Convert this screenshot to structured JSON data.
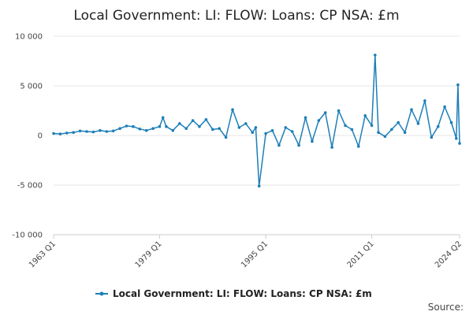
{
  "chart_data": {
    "type": "line",
    "title": "Local Government: LI: FLOW: Loans: CP NSA: £m",
    "xlabel": "",
    "ylabel": "",
    "ylim": [
      -10000,
      10000
    ],
    "y_ticks": [
      10000,
      5000,
      0,
      -5000,
      -10000
    ],
    "y_tick_labels": [
      "10 000",
      "5 000",
      "0",
      "-5 000",
      "-10 000"
    ],
    "x_tick_labels": [
      "1963 Q1",
      "1979 Q1",
      "1995 Q1",
      "2011 Q1",
      "2024 Q2"
    ],
    "grid": true,
    "legend_position": "bottom",
    "source_text": "Source:",
    "colors": {
      "series": "#1c7fb8"
    },
    "series": [
      {
        "name": "Local Government: LI: FLOW: Loans: CP NSA: £m",
        "x": [
          "1963 Q1",
          "1964 Q1",
          "1965 Q1",
          "1966 Q1",
          "1967 Q1",
          "1968 Q1",
          "1969 Q1",
          "1970 Q1",
          "1971 Q1",
          "1972 Q1",
          "1973 Q1",
          "1974 Q1",
          "1975 Q1",
          "1976 Q1",
          "1977 Q1",
          "1978 Q1",
          "1979 Q1",
          "1979 Q3",
          "1980 Q1",
          "1981 Q1",
          "1982 Q1",
          "1983 Q1",
          "1984 Q1",
          "1985 Q1",
          "1986 Q1",
          "1987 Q1",
          "1988 Q1",
          "1989 Q1",
          "1990 Q1",
          "1991 Q1",
          "1992 Q1",
          "1993 Q1",
          "1993 Q3",
          "1994 Q1",
          "1995 Q1",
          "1996 Q1",
          "1997 Q1",
          "1998 Q1",
          "1999 Q1",
          "2000 Q1",
          "2001 Q1",
          "2002 Q1",
          "2003 Q1",
          "2004 Q1",
          "2005 Q1",
          "2006 Q1",
          "2007 Q1",
          "2008 Q1",
          "2009 Q1",
          "2010 Q1",
          "2011 Q1",
          "2011 Q3",
          "2012 Q1",
          "2013 Q1",
          "2014 Q1",
          "2015 Q1",
          "2016 Q1",
          "2017 Q1",
          "2018 Q1",
          "2019 Q1",
          "2020 Q1",
          "2021 Q1",
          "2022 Q1",
          "2023 Q1",
          "2023 Q4",
          "2024 Q1",
          "2024 Q2"
        ],
        "values": [
          200,
          150,
          250,
          300,
          450,
          400,
          350,
          500,
          400,
          450,
          700,
          950,
          900,
          650,
          500,
          700,
          900,
          1800,
          900,
          500,
          1200,
          700,
          1500,
          900,
          1600,
          600,
          700,
          -200,
          2600,
          800,
          1200,
          300,
          800,
          -5100,
          200,
          500,
          -1000,
          800,
          400,
          -1000,
          1800,
          -600,
          1500,
          2300,
          -1200,
          2500,
          1000,
          600,
          -1100,
          2000,
          1000,
          8100,
          300,
          -100,
          600,
          1300,
          300,
          2600,
          1200,
          3500,
          -200,
          900,
          2900,
          1300,
          -300,
          5100,
          -800
        ]
      }
    ]
  }
}
